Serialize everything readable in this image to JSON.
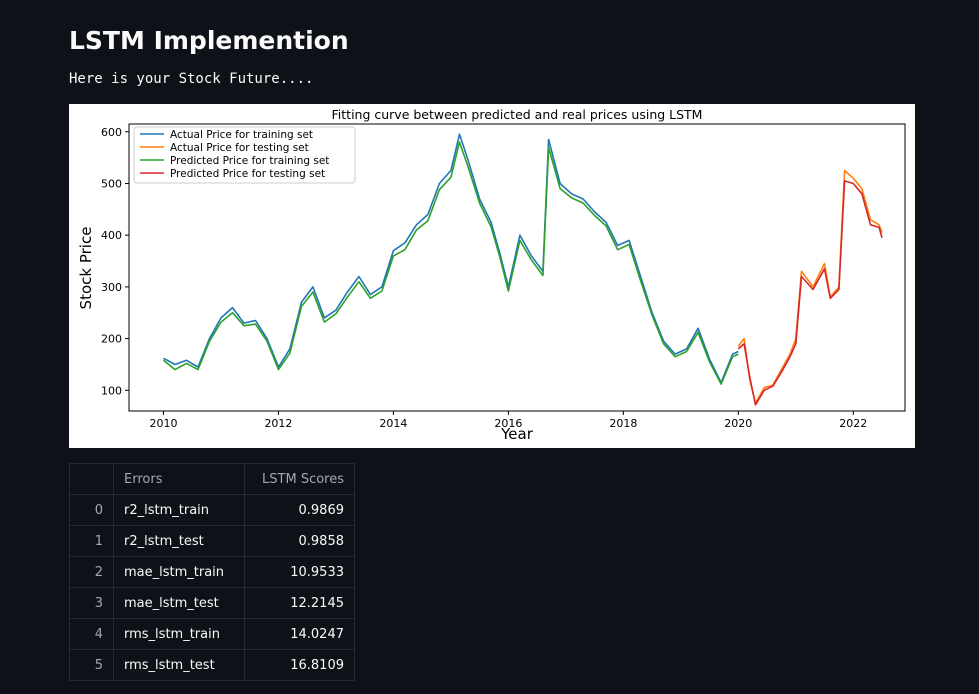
{
  "page": {
    "title": "LSTM Implemention",
    "subtitle": "Here is your Stock Future...."
  },
  "chart_data": {
    "type": "line",
    "title": "Fitting curve between predicted and real prices using LSTM",
    "xlabel": "Year",
    "ylabel": "Stock Price",
    "xlim": [
      2009.4,
      2022.9
    ],
    "ylim": [
      60,
      615
    ],
    "xticks": [
      2010,
      2012,
      2014,
      2016,
      2018,
      2020,
      2022
    ],
    "yticks": [
      100,
      200,
      300,
      400,
      500,
      600
    ],
    "grid": false,
    "legend_position": "top-left",
    "series": [
      {
        "name": "Actual Price for training set",
        "color": "#1f77b4",
        "x": [
          2010.0,
          2010.2,
          2010.4,
          2010.6,
          2010.8,
          2011.0,
          2011.2,
          2011.4,
          2011.6,
          2011.8,
          2012.0,
          2012.2,
          2012.4,
          2012.6,
          2012.8,
          2013.0,
          2013.2,
          2013.4,
          2013.6,
          2013.8,
          2014.0,
          2014.2,
          2014.4,
          2014.6,
          2014.8,
          2015.0,
          2015.15,
          2015.3,
          2015.5,
          2015.7,
          2015.85,
          2016.0,
          2016.2,
          2016.4,
          2016.6,
          2016.7,
          2016.9,
          2017.1,
          2017.3,
          2017.5,
          2017.7,
          2017.9,
          2018.1,
          2018.3,
          2018.5,
          2018.7,
          2018.9,
          2019.1,
          2019.3,
          2019.5,
          2019.7,
          2019.9,
          2020.0
        ],
        "values": [
          162,
          150,
          158,
          145,
          200,
          240,
          260,
          230,
          235,
          200,
          145,
          180,
          270,
          300,
          240,
          255,
          290,
          320,
          285,
          300,
          370,
          385,
          420,
          440,
          500,
          525,
          595,
          545,
          470,
          425,
          365,
          300,
          400,
          360,
          330,
          585,
          500,
          480,
          470,
          445,
          425,
          380,
          390,
          320,
          250,
          195,
          170,
          180,
          220,
          160,
          115,
          170,
          175
        ]
      },
      {
        "name": "Actual Price for testing set",
        "color": "#ff7f0e",
        "x": [
          2020.0,
          2020.1,
          2020.2,
          2020.3,
          2020.45,
          2020.6,
          2020.75,
          2020.9,
          2021.0,
          2021.1,
          2021.3,
          2021.5,
          2021.6,
          2021.75,
          2021.85,
          2022.0,
          2022.15,
          2022.3,
          2022.45,
          2022.5
        ],
        "values": [
          185,
          200,
          120,
          75,
          105,
          110,
          140,
          170,
          200,
          330,
          300,
          345,
          280,
          300,
          525,
          510,
          490,
          430,
          420,
          405
        ]
      },
      {
        "name": "Predicted Price for training set",
        "color": "#2ca02c",
        "x": [
          2010.0,
          2010.2,
          2010.4,
          2010.6,
          2010.8,
          2011.0,
          2011.2,
          2011.4,
          2011.6,
          2011.8,
          2012.0,
          2012.2,
          2012.4,
          2012.6,
          2012.8,
          2013.0,
          2013.2,
          2013.4,
          2013.6,
          2013.8,
          2014.0,
          2014.2,
          2014.4,
          2014.6,
          2014.8,
          2015.0,
          2015.15,
          2015.3,
          2015.5,
          2015.7,
          2015.85,
          2016.0,
          2016.2,
          2016.4,
          2016.6,
          2016.7,
          2016.9,
          2017.1,
          2017.3,
          2017.5,
          2017.7,
          2017.9,
          2018.1,
          2018.3,
          2018.5,
          2018.7,
          2018.9,
          2019.1,
          2019.3,
          2019.5,
          2019.7,
          2019.9,
          2020.0
        ],
        "values": [
          158,
          140,
          152,
          140,
          195,
          232,
          250,
          225,
          228,
          195,
          140,
          172,
          262,
          290,
          232,
          248,
          280,
          310,
          278,
          292,
          360,
          372,
          410,
          428,
          488,
          512,
          580,
          532,
          462,
          416,
          358,
          292,
          390,
          352,
          322,
          570,
          490,
          472,
          462,
          438,
          418,
          372,
          382,
          312,
          245,
          190,
          165,
          175,
          212,
          155,
          112,
          165,
          170
        ]
      },
      {
        "name": "Predicted Price for testing set",
        "color": "#d62728",
        "x": [
          2020.0,
          2020.1,
          2020.2,
          2020.3,
          2020.45,
          2020.6,
          2020.75,
          2020.9,
          2021.0,
          2021.1,
          2021.3,
          2021.5,
          2021.6,
          2021.75,
          2021.85,
          2022.0,
          2022.15,
          2022.3,
          2022.45,
          2022.5
        ],
        "values": [
          180,
          190,
          125,
          72,
          100,
          108,
          135,
          165,
          190,
          320,
          295,
          335,
          278,
          295,
          505,
          500,
          480,
          420,
          415,
          395
        ]
      }
    ]
  },
  "table": {
    "headers": [
      "",
      "Errors",
      "LSTM Scores"
    ],
    "rows": [
      {
        "index": "0",
        "error": "r2_lstm_train",
        "score": "0.9869"
      },
      {
        "index": "1",
        "error": "r2_lstm_test",
        "score": "0.9858"
      },
      {
        "index": "2",
        "error": "mae_lstm_train",
        "score": "10.9533"
      },
      {
        "index": "3",
        "error": "mae_lstm_test",
        "score": "12.2145"
      },
      {
        "index": "4",
        "error": "rms_lstm_train",
        "score": "14.0247"
      },
      {
        "index": "5",
        "error": "rms_lstm_test",
        "score": "16.8109"
      }
    ]
  }
}
